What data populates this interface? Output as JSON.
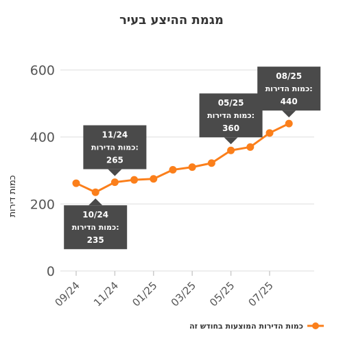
{
  "chart_data": {
    "type": "line",
    "title": "מגמת ההיצע בעיר",
    "ylabel": "כמות דירות",
    "xlabel": "",
    "x_tick_labels": [
      "09/24",
      "11/24",
      "01/25",
      "03/25",
      "05/25",
      "07/25"
    ],
    "y_ticks": [
      0,
      200,
      400,
      600
    ],
    "ylim": [
      0,
      640
    ],
    "series": [
      {
        "name": "כמות הדירות המוצעות בחודש זה",
        "color": "#fb7f1b",
        "x": [
          "09/24",
          "10/24",
          "11/24",
          "12/24",
          "01/25",
          "02/25",
          "03/25",
          "04/25",
          "05/25",
          "06/25",
          "07/25",
          "08/25"
        ],
        "values": [
          262,
          235,
          265,
          272,
          275,
          302,
          310,
          322,
          360,
          370,
          412,
          440
        ]
      }
    ],
    "annotations": [
      {
        "date": "10/24",
        "label": "כמות הדירות:",
        "value": "235",
        "point_index": 1,
        "placement": "below"
      },
      {
        "date": "11/24",
        "label": "כמות הדירות:",
        "value": "265",
        "point_index": 2,
        "placement": "above"
      },
      {
        "date": "05/25",
        "label": "כמות הדירות:",
        "value": "360",
        "point_index": 8,
        "placement": "above"
      },
      {
        "date": "08/25",
        "label": "כמות הדירות:",
        "value": "440",
        "point_index": 11,
        "placement": "above"
      }
    ],
    "legend_position": "bottom-right",
    "grid": true,
    "colors": {
      "line": "#fb7f1b",
      "grid": "#e8e8e8",
      "tooltip_bg": "#4a4a4a"
    }
  }
}
